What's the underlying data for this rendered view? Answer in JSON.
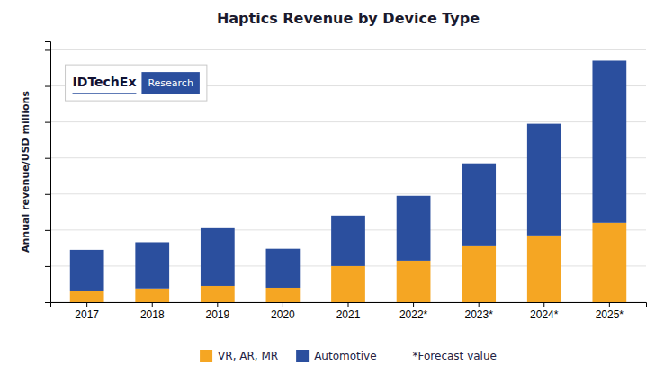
{
  "chart_data": {
    "type": "bar",
    "stacked": true,
    "title": "Haptics Revenue by Device Type",
    "y_label": "Annual revenue/USD millions",
    "categories": [
      "2017",
      "2018",
      "2019",
      "2020",
      "2021",
      "2022*",
      "2023*",
      "2024*",
      "2025*"
    ],
    "series": [
      {
        "name": "VR, AR, MR",
        "color": "#F5A623",
        "values": [
          30,
          38,
          45,
          40,
          100,
          115,
          155,
          185,
          220
        ]
      },
      {
        "name": "Automotive",
        "color": "#2B4F9E",
        "values": [
          115,
          128,
          160,
          108,
          140,
          180,
          230,
          310,
          450
        ]
      }
    ],
    "ylim": [
      0,
      723.6
    ],
    "yticks": [
      0,
      100,
      200,
      300,
      400,
      500,
      600,
      700
    ],
    "grid": true,
    "tick_labels": "x",
    "legend": "bottom",
    "annotations": [
      "*Forecast value",
      "IDTechEx",
      "Research"
    ]
  }
}
